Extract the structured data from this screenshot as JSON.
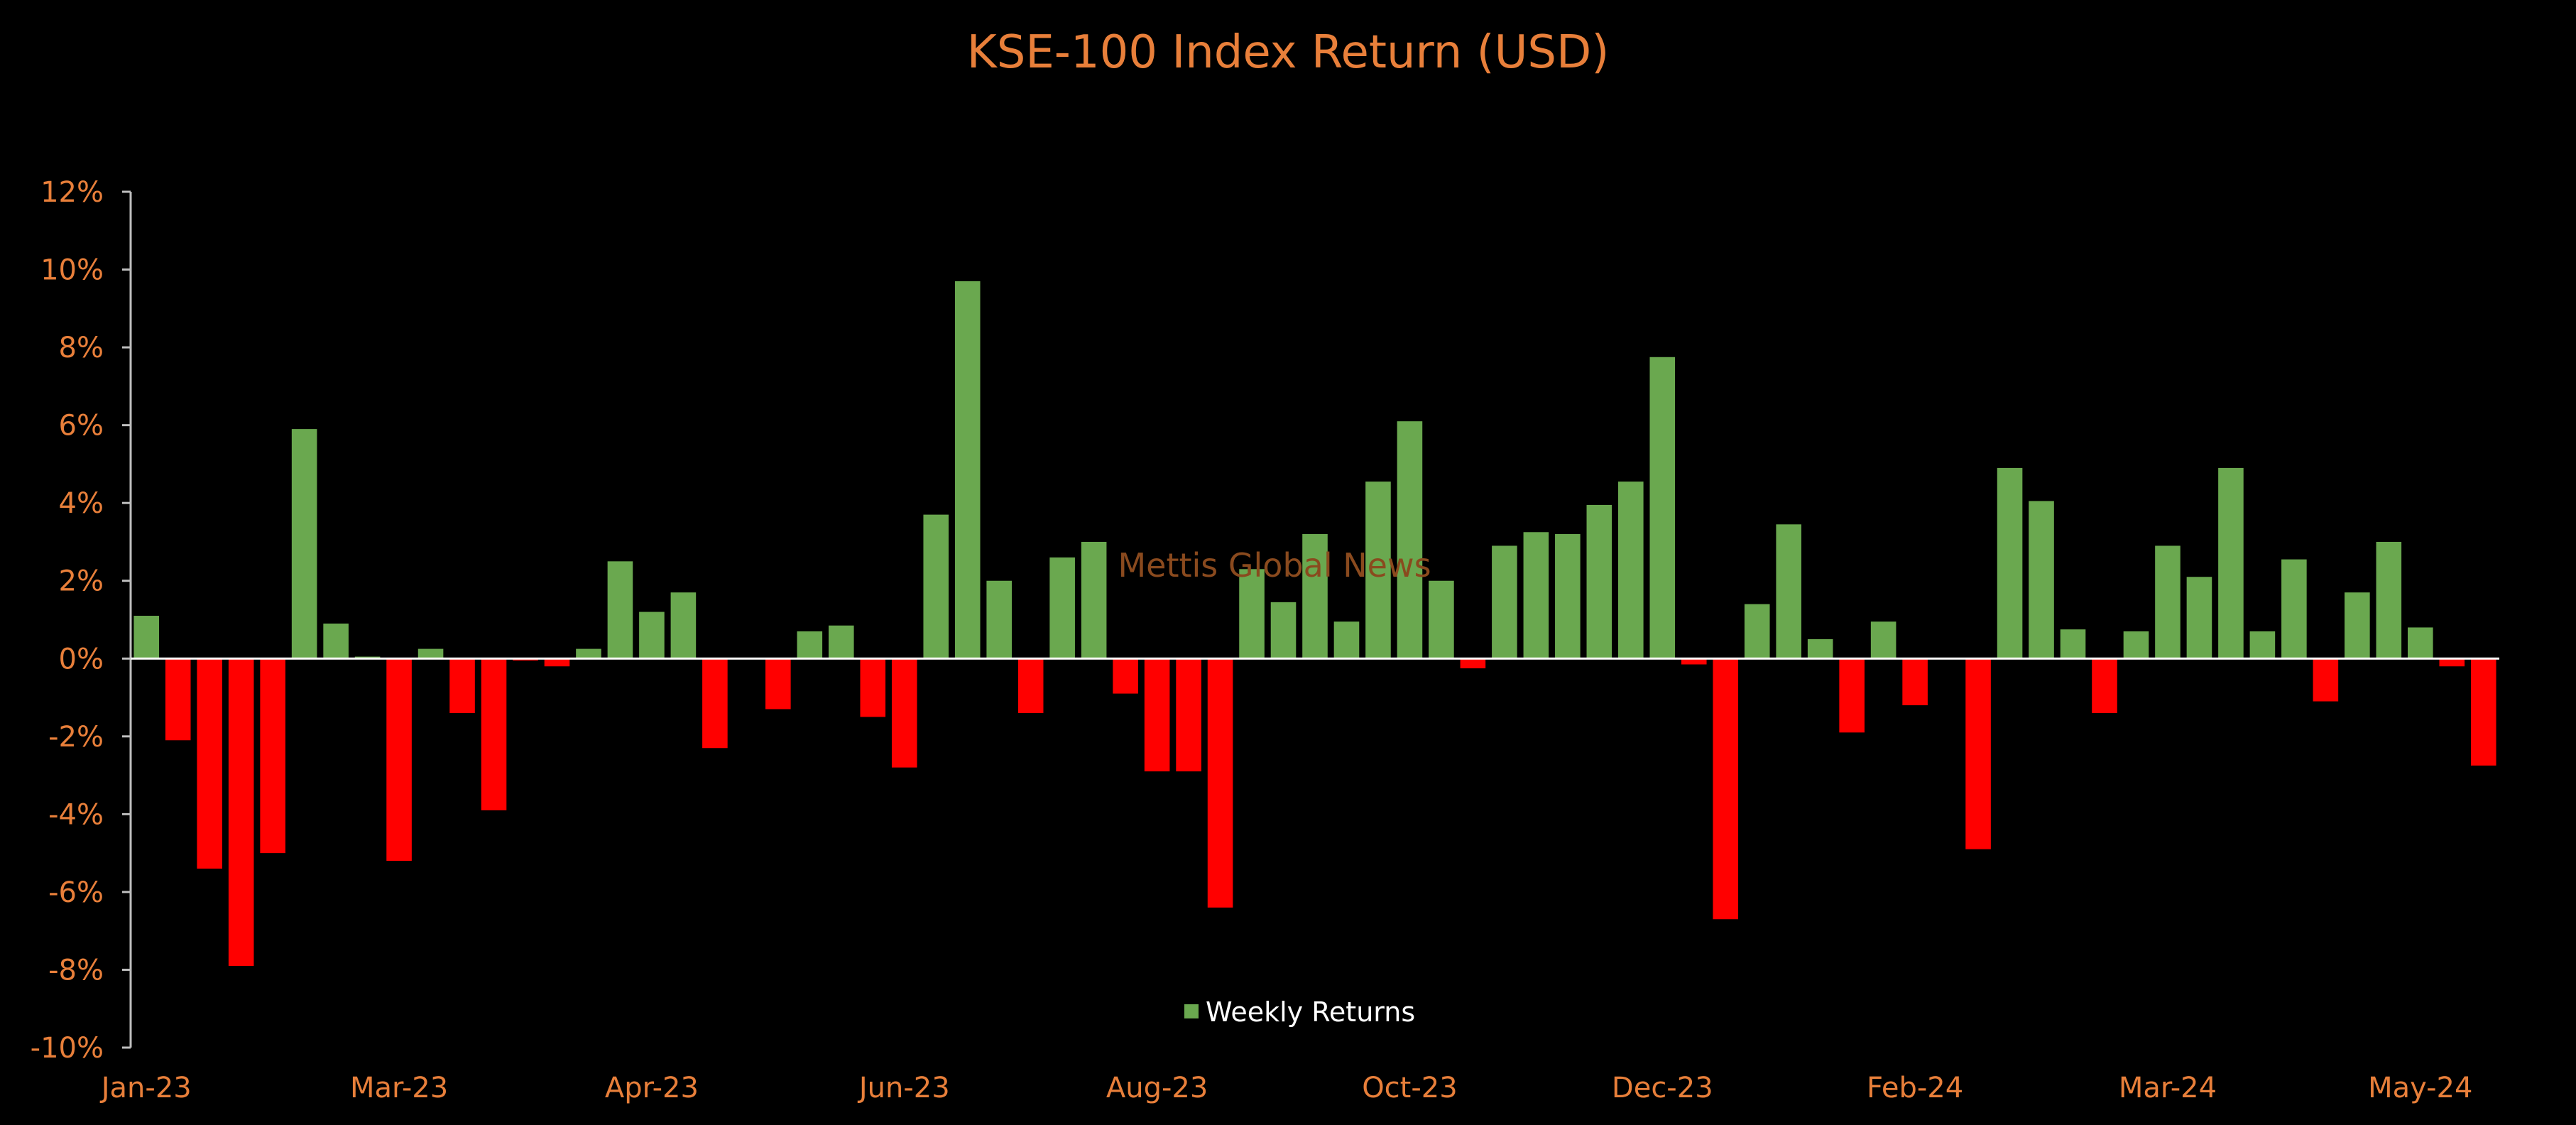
{
  "chart_data": {
    "type": "bar",
    "title": "KSE-100 Index Return (USD)",
    "xlabel": "",
    "ylabel": "",
    "ylim": [
      -10,
      12
    ],
    "y_ticks": [
      12,
      10,
      8,
      6,
      4,
      2,
      0,
      -2,
      -4,
      -6,
      -8,
      -10
    ],
    "y_tick_labels": [
      "12%",
      "10%",
      "8%",
      "6%",
      "4%",
      "2%",
      "0%",
      "-2%",
      "-4%",
      "-6%",
      "-8%",
      "-10%"
    ],
    "x_tick_labels": [
      "Jan-23",
      "Mar-23",
      "Apr-23",
      "Jun-23",
      "Aug-23",
      "Oct-23",
      "Dec-23",
      "Feb-24",
      "Mar-24",
      "May-24"
    ],
    "x_tick_week_index": [
      0,
      8,
      16,
      24,
      32,
      40,
      48,
      56,
      64,
      72
    ],
    "grid": false,
    "legend": {
      "position": "bottom-center",
      "label": "Weekly Returns"
    },
    "positive_color": "#6aa84f",
    "negative_color": "#ff0000",
    "watermark": "Mettis Global News",
    "series": [
      {
        "name": "Weekly Returns",
        "values": [
          1.1,
          -2.1,
          -5.4,
          -7.9,
          -5.0,
          5.9,
          0.9,
          0.05,
          -5.2,
          0.25,
          -1.4,
          -3.9,
          -0.05,
          -0.2,
          0.25,
          2.5,
          1.2,
          1.7,
          -2.3,
          0.0,
          -1.3,
          0.7,
          0.85,
          -1.5,
          -2.8,
          3.7,
          9.7,
          2.0,
          -1.4,
          2.6,
          3.0,
          -0.9,
          -2.9,
          -2.9,
          -6.4,
          2.3,
          1.45,
          3.2,
          0.95,
          4.55,
          6.1,
          2.0,
          -0.25,
          2.9,
          3.25,
          3.2,
          3.95,
          4.55,
          7.75,
          -0.15,
          -6.7,
          1.4,
          3.45,
          0.5,
          -1.9,
          0.95,
          -1.2,
          0.0,
          -4.9,
          4.9,
          4.05,
          0.75,
          -1.4,
          0.7,
          2.9,
          2.1,
          4.9,
          0.7,
          2.55,
          -1.1,
          1.7,
          3.0,
          0.8,
          -0.2,
          -2.75
        ]
      }
    ]
  }
}
